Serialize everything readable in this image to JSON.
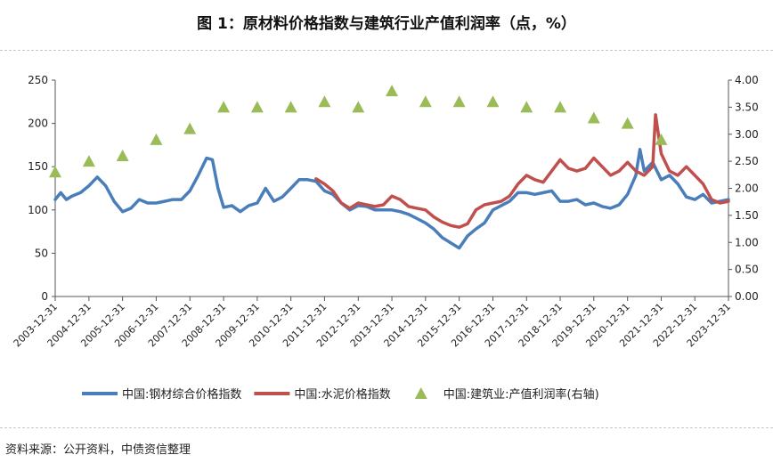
{
  "title": "图 1：原材料价格指数与建筑行业产值利润率（点，%）",
  "source": "资料来源：公开资料，中债资信整理",
  "chart_data": {
    "type": "line",
    "title": "图 1：原材料价格指数与建筑行业产值利润率（点，%）",
    "x_start": "2003-12-31",
    "x_end": "2023-12-31",
    "x_tick_labels": [
      "2003-12-31",
      "2004-12-31",
      "2005-12-31",
      "2006-12-31",
      "2007-12-31",
      "2008-12-31",
      "2009-12-31",
      "2010-12-31",
      "2011-12-31",
      "2012-12-31",
      "2013-12-31",
      "2014-12-31",
      "2015-12-31",
      "2016-12-31",
      "2017-12-31",
      "2018-12-31",
      "2019-12-31",
      "2020-12-31",
      "2021-12-31",
      "2022-12-31",
      "2023-12-31"
    ],
    "y_left": {
      "min": 0,
      "max": 250,
      "ticks": [
        "0",
        "50",
        "100",
        "150",
        "200",
        "250"
      ]
    },
    "y_right": {
      "min": 0,
      "max": 4,
      "ticks": [
        "0.00",
        "0.50",
        "1.00",
        "1.50",
        "2.00",
        "2.50",
        "3.00",
        "3.50",
        "4.00"
      ]
    },
    "legend_position": "bottom",
    "grid": false,
    "series": [
      {
        "name": "中国:钢材综合价格指数",
        "axis": "left",
        "color": "#4a7ebb",
        "style": "line",
        "points": [
          [
            "2003-12-31",
            112
          ],
          [
            "2004-02-29",
            120
          ],
          [
            "2004-04-30",
            112
          ],
          [
            "2004-06-30",
            116
          ],
          [
            "2004-09-30",
            120
          ],
          [
            "2004-12-31",
            128
          ],
          [
            "2005-03-31",
            138
          ],
          [
            "2005-06-30",
            128
          ],
          [
            "2005-09-30",
            110
          ],
          [
            "2005-12-31",
            98
          ],
          [
            "2006-03-31",
            102
          ],
          [
            "2006-06-30",
            112
          ],
          [
            "2006-09-30",
            108
          ],
          [
            "2006-12-31",
            108
          ],
          [
            "2007-03-31",
            110
          ],
          [
            "2007-06-30",
            112
          ],
          [
            "2007-09-30",
            112
          ],
          [
            "2007-12-31",
            122
          ],
          [
            "2008-03-31",
            140
          ],
          [
            "2008-06-30",
            160
          ],
          [
            "2008-08-31",
            158
          ],
          [
            "2008-10-31",
            125
          ],
          [
            "2008-12-31",
            103
          ],
          [
            "2009-03-31",
            105
          ],
          [
            "2009-06-30",
            98
          ],
          [
            "2009-09-30",
            105
          ],
          [
            "2009-12-31",
            108
          ],
          [
            "2010-03-31",
            125
          ],
          [
            "2010-06-30",
            110
          ],
          [
            "2010-09-30",
            115
          ],
          [
            "2010-12-31",
            125
          ],
          [
            "2011-03-31",
            135
          ],
          [
            "2011-06-30",
            135
          ],
          [
            "2011-09-30",
            133
          ],
          [
            "2011-12-31",
            122
          ],
          [
            "2012-03-31",
            118
          ],
          [
            "2012-06-30",
            108
          ],
          [
            "2012-09-30",
            100
          ],
          [
            "2012-12-31",
            105
          ],
          [
            "2013-03-31",
            104
          ],
          [
            "2013-06-30",
            100
          ],
          [
            "2013-09-30",
            100
          ],
          [
            "2013-12-31",
            100
          ],
          [
            "2014-03-31",
            98
          ],
          [
            "2014-06-30",
            95
          ],
          [
            "2014-09-30",
            90
          ],
          [
            "2014-12-31",
            85
          ],
          [
            "2015-03-31",
            78
          ],
          [
            "2015-06-30",
            68
          ],
          [
            "2015-09-30",
            62
          ],
          [
            "2015-12-31",
            56
          ],
          [
            "2016-03-31",
            70
          ],
          [
            "2016-06-30",
            78
          ],
          [
            "2016-09-30",
            85
          ],
          [
            "2016-12-31",
            100
          ],
          [
            "2017-03-31",
            105
          ],
          [
            "2017-06-30",
            110
          ],
          [
            "2017-09-30",
            120
          ],
          [
            "2017-12-31",
            120
          ],
          [
            "2018-03-31",
            118
          ],
          [
            "2018-06-30",
            120
          ],
          [
            "2018-09-30",
            122
          ],
          [
            "2018-12-31",
            110
          ],
          [
            "2019-03-31",
            110
          ],
          [
            "2019-06-30",
            112
          ],
          [
            "2019-09-30",
            106
          ],
          [
            "2019-12-31",
            108
          ],
          [
            "2020-03-31",
            104
          ],
          [
            "2020-06-30",
            102
          ],
          [
            "2020-09-30",
            106
          ],
          [
            "2020-12-31",
            118
          ],
          [
            "2021-03-31",
            140
          ],
          [
            "2021-05-15",
            170
          ],
          [
            "2021-06-30",
            145
          ],
          [
            "2021-09-30",
            155
          ],
          [
            "2021-12-31",
            135
          ],
          [
            "2022-03-31",
            140
          ],
          [
            "2022-06-30",
            130
          ],
          [
            "2022-09-30",
            115
          ],
          [
            "2022-12-31",
            112
          ],
          [
            "2023-03-31",
            118
          ],
          [
            "2023-06-30",
            108
          ],
          [
            "2023-09-30",
            110
          ],
          [
            "2023-12-31",
            112
          ]
        ]
      },
      {
        "name": "中国:水泥价格指数",
        "axis": "left",
        "color": "#c0504d",
        "style": "line",
        "points": [
          [
            "2011-09-30",
            136
          ],
          [
            "2011-12-31",
            130
          ],
          [
            "2012-03-31",
            122
          ],
          [
            "2012-06-30",
            108
          ],
          [
            "2012-09-30",
            102
          ],
          [
            "2012-12-31",
            108
          ],
          [
            "2013-03-31",
            106
          ],
          [
            "2013-06-30",
            104
          ],
          [
            "2013-09-30",
            106
          ],
          [
            "2013-12-31",
            116
          ],
          [
            "2014-03-31",
            112
          ],
          [
            "2014-06-30",
            104
          ],
          [
            "2014-09-30",
            102
          ],
          [
            "2014-12-31",
            100
          ],
          [
            "2015-03-31",
            92
          ],
          [
            "2015-06-30",
            86
          ],
          [
            "2015-09-30",
            82
          ],
          [
            "2015-12-31",
            80
          ],
          [
            "2016-03-31",
            84
          ],
          [
            "2016-06-30",
            100
          ],
          [
            "2016-09-30",
            106
          ],
          [
            "2016-12-31",
            108
          ],
          [
            "2017-03-31",
            110
          ],
          [
            "2017-06-30",
            116
          ],
          [
            "2017-09-30",
            130
          ],
          [
            "2017-12-31",
            140
          ],
          [
            "2018-03-31",
            135
          ],
          [
            "2018-06-30",
            132
          ],
          [
            "2018-09-30",
            145
          ],
          [
            "2018-12-31",
            158
          ],
          [
            "2019-03-31",
            148
          ],
          [
            "2019-06-30",
            145
          ],
          [
            "2019-09-30",
            148
          ],
          [
            "2019-12-31",
            160
          ],
          [
            "2020-03-31",
            150
          ],
          [
            "2020-06-30",
            140
          ],
          [
            "2020-09-30",
            145
          ],
          [
            "2020-12-31",
            155
          ],
          [
            "2021-03-31",
            145
          ],
          [
            "2021-06-30",
            140
          ],
          [
            "2021-09-30",
            150
          ],
          [
            "2021-10-31",
            210
          ],
          [
            "2021-12-31",
            165
          ],
          [
            "2022-03-31",
            145
          ],
          [
            "2022-06-30",
            140
          ],
          [
            "2022-09-30",
            150
          ],
          [
            "2022-12-31",
            140
          ],
          [
            "2023-03-31",
            130
          ],
          [
            "2023-06-30",
            112
          ],
          [
            "2023-09-30",
            108
          ],
          [
            "2023-12-31",
            110
          ]
        ]
      },
      {
        "name": "中国:建筑业:产值利润率(右轴)",
        "axis": "right",
        "color": "#9bbb59",
        "style": "marker-triangle",
        "points": [
          [
            "2003-12-31",
            2.3
          ],
          [
            "2004-12-31",
            2.5
          ],
          [
            "2005-12-31",
            2.6
          ],
          [
            "2006-12-31",
            2.9
          ],
          [
            "2007-12-31",
            3.1
          ],
          [
            "2008-12-31",
            3.5
          ],
          [
            "2009-12-31",
            3.5
          ],
          [
            "2010-12-31",
            3.5
          ],
          [
            "2011-12-31",
            3.6
          ],
          [
            "2012-12-31",
            3.5
          ],
          [
            "2013-12-31",
            3.8
          ],
          [
            "2014-12-31",
            3.6
          ],
          [
            "2015-12-31",
            3.6
          ],
          [
            "2016-12-31",
            3.6
          ],
          [
            "2017-12-31",
            3.5
          ],
          [
            "2018-12-31",
            3.5
          ],
          [
            "2019-12-31",
            3.3
          ],
          [
            "2020-12-31",
            3.2
          ],
          [
            "2021-12-31",
            2.9
          ]
        ]
      }
    ]
  }
}
